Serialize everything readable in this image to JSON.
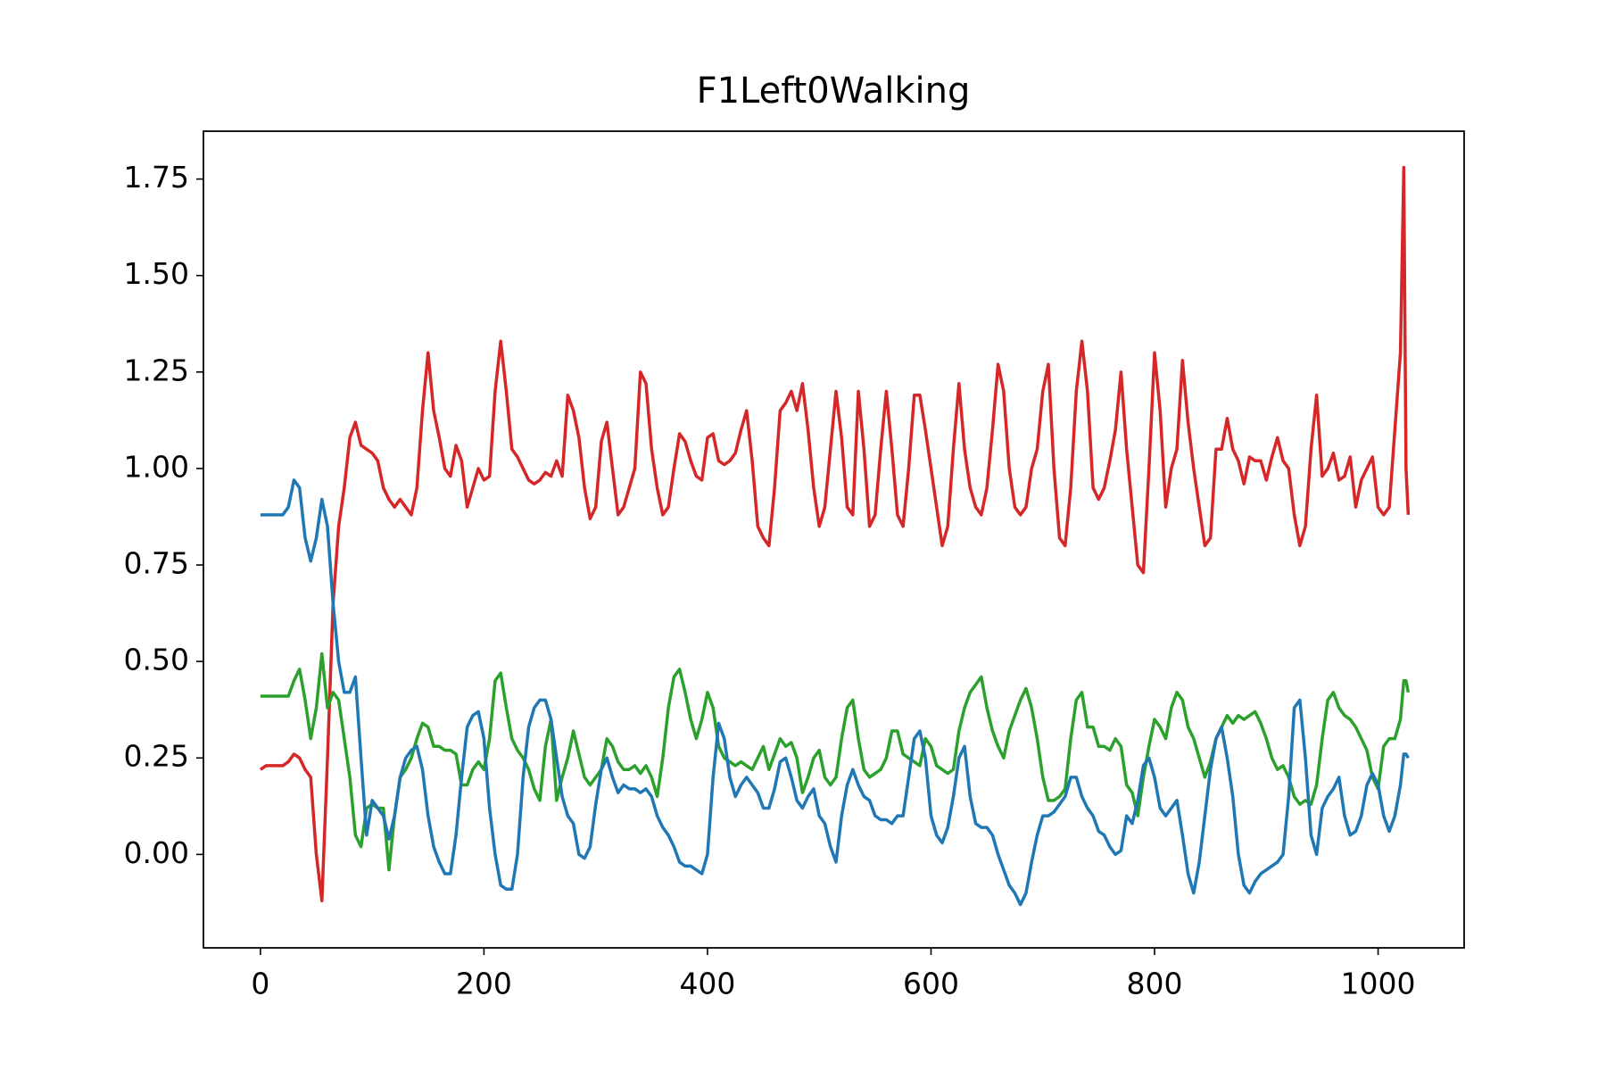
{
  "chart_data": {
    "type": "line",
    "title": "F1Left0Walking",
    "x": [
      0,
      5,
      10,
      15,
      20,
      25,
      30,
      35,
      40,
      45,
      50,
      55,
      60,
      65,
      70,
      75,
      80,
      85,
      90,
      95,
      100,
      105,
      110,
      115,
      120,
      125,
      130,
      135,
      140,
      145,
      150,
      155,
      160,
      165,
      170,
      175,
      180,
      185,
      190,
      195,
      200,
      205,
      210,
      215,
      220,
      225,
      230,
      235,
      240,
      245,
      250,
      255,
      260,
      265,
      270,
      275,
      280,
      285,
      290,
      295,
      300,
      305,
      310,
      315,
      320,
      325,
      330,
      335,
      340,
      345,
      350,
      355,
      360,
      365,
      370,
      375,
      380,
      385,
      390,
      395,
      400,
      405,
      410,
      415,
      420,
      425,
      430,
      435,
      440,
      445,
      450,
      455,
      460,
      465,
      470,
      475,
      480,
      485,
      490,
      495,
      500,
      505,
      510,
      515,
      520,
      525,
      530,
      535,
      540,
      545,
      550,
      555,
      560,
      565,
      570,
      575,
      580,
      585,
      590,
      595,
      600,
      605,
      610,
      615,
      620,
      625,
      630,
      635,
      640,
      645,
      650,
      655,
      660,
      665,
      670,
      675,
      680,
      685,
      690,
      695,
      700,
      705,
      710,
      715,
      720,
      725,
      730,
      735,
      740,
      745,
      750,
      755,
      760,
      765,
      770,
      775,
      780,
      785,
      790,
      795,
      800,
      805,
      810,
      815,
      820,
      825,
      830,
      835,
      840,
      845,
      850,
      855,
      860,
      865,
      870,
      875,
      880,
      885,
      890,
      895,
      900,
      905,
      910,
      915,
      920,
      925,
      930,
      935,
      940,
      945,
      950,
      955,
      960,
      965,
      970,
      975,
      980,
      985,
      990,
      995,
      1000,
      1005,
      1010,
      1015,
      1020,
      1023,
      1025,
      1027
    ],
    "series": [
      {
        "color": "#d62728",
        "values": [
          0.22,
          0.23,
          0.23,
          0.23,
          0.23,
          0.24,
          0.26,
          0.25,
          0.22,
          0.2,
          0.0,
          -0.12,
          0.25,
          0.65,
          0.85,
          0.95,
          1.08,
          1.12,
          1.06,
          1.05,
          1.04,
          1.02,
          0.95,
          0.92,
          0.9,
          0.92,
          0.9,
          0.88,
          0.95,
          1.15,
          1.3,
          1.15,
          1.08,
          1.0,
          0.98,
          1.06,
          1.02,
          0.9,
          0.95,
          1.0,
          0.97,
          0.98,
          1.2,
          1.33,
          1.2,
          1.05,
          1.03,
          1.0,
          0.97,
          0.96,
          0.97,
          0.99,
          0.98,
          1.02,
          0.98,
          1.19,
          1.15,
          1.08,
          0.95,
          0.87,
          0.9,
          1.07,
          1.12,
          1.0,
          0.88,
          0.9,
          0.95,
          1.0,
          1.25,
          1.22,
          1.05,
          0.95,
          0.88,
          0.9,
          1.0,
          1.09,
          1.07,
          1.02,
          0.98,
          0.97,
          1.08,
          1.09,
          1.02,
          1.01,
          1.02,
          1.04,
          1.1,
          1.15,
          1.02,
          0.85,
          0.82,
          0.8,
          0.95,
          1.15,
          1.17,
          1.2,
          1.15,
          1.22,
          1.1,
          0.95,
          0.85,
          0.9,
          1.05,
          1.2,
          1.08,
          0.9,
          0.88,
          1.2,
          1.05,
          0.85,
          0.88,
          1.05,
          1.2,
          1.05,
          0.88,
          0.85,
          1.0,
          1.19,
          1.19,
          1.1,
          1.0,
          0.9,
          0.8,
          0.85,
          1.05,
          1.22,
          1.05,
          0.95,
          0.9,
          0.88,
          0.95,
          1.1,
          1.27,
          1.2,
          1.0,
          0.9,
          0.88,
          0.9,
          1.0,
          1.05,
          1.2,
          1.27,
          1.0,
          0.82,
          0.8,
          0.95,
          1.2,
          1.33,
          1.2,
          0.95,
          0.92,
          0.95,
          1.02,
          1.1,
          1.25,
          1.05,
          0.9,
          0.75,
          0.73,
          1.0,
          1.3,
          1.15,
          0.9,
          1.0,
          1.05,
          1.28,
          1.12,
          1.0,
          0.9,
          0.8,
          0.82,
          1.05,
          1.05,
          1.13,
          1.05,
          1.02,
          0.96,
          1.03,
          1.02,
          1.02,
          0.97,
          1.03,
          1.08,
          1.02,
          1.0,
          0.88,
          0.8,
          0.85,
          1.05,
          1.19,
          0.98,
          1.0,
          1.04,
          0.97,
          0.98,
          1.03,
          0.9,
          0.97,
          1.0,
          1.03,
          0.9,
          0.88,
          0.9,
          1.1,
          1.3,
          1.78,
          1.0,
          0.88
        ]
      },
      {
        "color": "#2ca02c",
        "values": [
          0.41,
          0.41,
          0.41,
          0.41,
          0.41,
          0.41,
          0.45,
          0.48,
          0.4,
          0.3,
          0.38,
          0.52,
          0.38,
          0.42,
          0.4,
          0.3,
          0.2,
          0.05,
          0.02,
          0.12,
          0.13,
          0.12,
          0.12,
          -0.04,
          0.1,
          0.2,
          0.22,
          0.25,
          0.3,
          0.34,
          0.33,
          0.28,
          0.28,
          0.27,
          0.27,
          0.26,
          0.18,
          0.18,
          0.22,
          0.24,
          0.22,
          0.3,
          0.45,
          0.47,
          0.38,
          0.3,
          0.27,
          0.25,
          0.22,
          0.17,
          0.14,
          0.28,
          0.35,
          0.14,
          0.2,
          0.25,
          0.32,
          0.26,
          0.2,
          0.18,
          0.2,
          0.22,
          0.3,
          0.28,
          0.24,
          0.22,
          0.22,
          0.23,
          0.21,
          0.23,
          0.2,
          0.15,
          0.25,
          0.38,
          0.46,
          0.48,
          0.42,
          0.35,
          0.3,
          0.35,
          0.42,
          0.38,
          0.28,
          0.25,
          0.24,
          0.23,
          0.24,
          0.23,
          0.22,
          0.25,
          0.28,
          0.22,
          0.26,
          0.3,
          0.28,
          0.29,
          0.25,
          0.16,
          0.2,
          0.25,
          0.27,
          0.2,
          0.18,
          0.2,
          0.3,
          0.38,
          0.4,
          0.3,
          0.22,
          0.2,
          0.21,
          0.22,
          0.25,
          0.32,
          0.32,
          0.26,
          0.25,
          0.24,
          0.23,
          0.3,
          0.28,
          0.23,
          0.22,
          0.21,
          0.22,
          0.32,
          0.38,
          0.42,
          0.44,
          0.46,
          0.38,
          0.32,
          0.28,
          0.25,
          0.32,
          0.36,
          0.4,
          0.43,
          0.38,
          0.3,
          0.2,
          0.14,
          0.14,
          0.15,
          0.17,
          0.3,
          0.4,
          0.42,
          0.33,
          0.33,
          0.28,
          0.28,
          0.27,
          0.3,
          0.28,
          0.18,
          0.16,
          0.1,
          0.2,
          0.28,
          0.35,
          0.33,
          0.3,
          0.38,
          0.42,
          0.4,
          0.33,
          0.3,
          0.25,
          0.2,
          0.24,
          0.3,
          0.33,
          0.36,
          0.34,
          0.36,
          0.35,
          0.36,
          0.37,
          0.34,
          0.3,
          0.25,
          0.22,
          0.23,
          0.2,
          0.15,
          0.13,
          0.14,
          0.13,
          0.18,
          0.3,
          0.4,
          0.42,
          0.38,
          0.36,
          0.35,
          0.33,
          0.3,
          0.27,
          0.2,
          0.17,
          0.28,
          0.3,
          0.3,
          0.35,
          0.45,
          0.45,
          0.42
        ]
      },
      {
        "color": "#1f77b4",
        "values": [
          0.88,
          0.88,
          0.88,
          0.88,
          0.88,
          0.9,
          0.97,
          0.95,
          0.82,
          0.76,
          0.82,
          0.92,
          0.85,
          0.65,
          0.5,
          0.42,
          0.42,
          0.46,
          0.25,
          0.05,
          0.14,
          0.12,
          0.1,
          0.04,
          0.1,
          0.2,
          0.25,
          0.27,
          0.28,
          0.22,
          0.1,
          0.02,
          -0.02,
          -0.05,
          -0.05,
          0.05,
          0.2,
          0.33,
          0.36,
          0.37,
          0.3,
          0.12,
          0.0,
          -0.08,
          -0.09,
          -0.09,
          0.0,
          0.2,
          0.33,
          0.38,
          0.4,
          0.4,
          0.35,
          0.25,
          0.15,
          0.1,
          0.08,
          0.0,
          -0.01,
          0.02,
          0.13,
          0.22,
          0.25,
          0.2,
          0.16,
          0.18,
          0.17,
          0.17,
          0.16,
          0.17,
          0.15,
          0.1,
          0.07,
          0.05,
          0.02,
          -0.02,
          -0.03,
          -0.03,
          -0.04,
          -0.05,
          0.0,
          0.2,
          0.34,
          0.3,
          0.2,
          0.15,
          0.18,
          0.2,
          0.18,
          0.16,
          0.12,
          0.12,
          0.17,
          0.24,
          0.25,
          0.2,
          0.14,
          0.12,
          0.15,
          0.17,
          0.1,
          0.08,
          0.02,
          -0.02,
          0.1,
          0.18,
          0.22,
          0.18,
          0.15,
          0.14,
          0.1,
          0.09,
          0.09,
          0.08,
          0.1,
          0.1,
          0.2,
          0.3,
          0.32,
          0.25,
          0.1,
          0.05,
          0.03,
          0.07,
          0.15,
          0.25,
          0.28,
          0.15,
          0.08,
          0.07,
          0.07,
          0.05,
          0.0,
          -0.04,
          -0.08,
          -0.1,
          -0.13,
          -0.1,
          -0.02,
          0.05,
          0.1,
          0.1,
          0.11,
          0.13,
          0.15,
          0.2,
          0.2,
          0.15,
          0.12,
          0.1,
          0.06,
          0.05,
          0.02,
          0.0,
          0.01,
          0.1,
          0.08,
          0.14,
          0.23,
          0.25,
          0.2,
          0.12,
          0.1,
          0.12,
          0.14,
          0.05,
          -0.05,
          -0.1,
          -0.02,
          0.1,
          0.22,
          0.3,
          0.33,
          0.25,
          0.15,
          0.0,
          -0.08,
          -0.1,
          -0.07,
          -0.05,
          -0.04,
          -0.03,
          -0.02,
          0.0,
          0.15,
          0.38,
          0.4,
          0.25,
          0.05,
          0.0,
          0.12,
          0.15,
          0.17,
          0.2,
          0.1,
          0.05,
          0.06,
          0.1,
          0.18,
          0.21,
          0.18,
          0.1,
          0.06,
          0.1,
          0.18,
          0.26,
          0.26,
          0.25
        ]
      }
    ],
    "xlim": [
      -51,
      1077
    ],
    "ylim": [
      -0.242,
      1.874
    ],
    "xticks": [
      0,
      200,
      400,
      600,
      800,
      1000
    ],
    "yticks": [
      {
        "value": 0,
        "label": "0.00"
      },
      {
        "value": 0.25,
        "label": "0.25"
      },
      {
        "value": 0.5,
        "label": "0.50"
      },
      {
        "value": 0.75,
        "label": "0.75"
      },
      {
        "value": 1,
        "label": "1.00"
      },
      {
        "value": 1.25,
        "label": "1.25"
      },
      {
        "value": 1.5,
        "label": "1.50"
      },
      {
        "value": 1.75,
        "label": "1.75"
      }
    ]
  }
}
